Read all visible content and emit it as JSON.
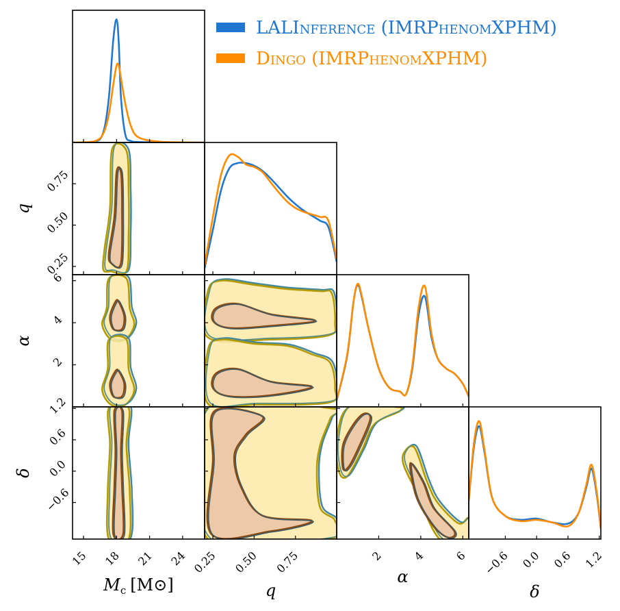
{
  "chart_data": {
    "type": "corner",
    "legend_position": "top-right",
    "grid": false,
    "series": [
      {
        "name": "LALInference (IMRPhenomXPHM)",
        "color": "#1f77d0",
        "sc_name": true
      },
      {
        "name": "Dingo (IMRPhenomXPHM)",
        "color": "#ff8c00",
        "sc_name": true
      }
    ],
    "parameters": [
      {
        "key": "Mc",
        "label_main": "M",
        "label_sub": "c",
        "label_unit": "[M⊙]",
        "range": [
          14,
          26
        ],
        "ticks": [
          "15",
          "18",
          "21",
          "24"
        ],
        "tick_values": [
          15,
          18,
          21,
          24
        ]
      },
      {
        "key": "q",
        "label_main": "q",
        "range": [
          0.2,
          1.0
        ],
        "ticks": [
          "0.25",
          "0.50",
          "0.75"
        ],
        "tick_values": [
          0.25,
          0.5,
          0.75
        ]
      },
      {
        "key": "alpha",
        "label_main": "α",
        "range": [
          0,
          6.283
        ],
        "ticks": [
          "2",
          "4",
          "6"
        ],
        "tick_values": [
          2,
          4,
          6
        ]
      },
      {
        "key": "delta",
        "label_main": "δ",
        "range": [
          -1.3,
          1.23
        ],
        "ticks": [
          "−0.6",
          "0.0",
          "0.6",
          "1.2"
        ],
        "tick_values": [
          -0.6,
          0.0,
          0.6,
          1.2
        ]
      }
    ],
    "marginals": {
      "Mc": {
        "x": [
          14,
          16,
          16.8,
          17.3,
          17.7,
          18.0,
          18.2,
          18.4,
          18.8,
          19.3,
          20,
          22,
          26
        ],
        "LALInference": [
          0,
          0.005,
          0.08,
          0.35,
          0.8,
          0.96,
          0.78,
          0.35,
          0.06,
          0.012,
          0.004,
          0.001,
          0
        ],
        "Dingo": [
          0,
          0.01,
          0.07,
          0.22,
          0.45,
          0.6,
          0.6,
          0.5,
          0.3,
          0.13,
          0.04,
          0.006,
          0
        ]
      },
      "q": {
        "x": [
          0.2,
          0.25,
          0.3,
          0.35,
          0.4,
          0.45,
          0.5,
          0.55,
          0.6,
          0.65,
          0.7,
          0.75,
          0.8,
          0.85,
          0.9,
          0.95,
          1.0
        ],
        "LALInference": [
          0.05,
          0.35,
          0.66,
          0.83,
          0.87,
          0.87,
          0.85,
          0.81,
          0.75,
          0.68,
          0.61,
          0.55,
          0.5,
          0.46,
          0.42,
          0.37,
          0.1
        ],
        "Dingo": [
          0.07,
          0.45,
          0.78,
          0.93,
          0.92,
          0.86,
          0.84,
          0.8,
          0.72,
          0.64,
          0.57,
          0.52,
          0.49,
          0.47,
          0.45,
          0.42,
          0.12
        ]
      },
      "alpha": {
        "x": [
          0,
          0.5,
          0.8,
          1.0,
          1.2,
          1.5,
          2.0,
          2.5,
          3.0,
          3.3,
          3.6,
          3.9,
          4.2,
          4.5,
          4.8,
          5.2,
          5.6,
          6.0,
          6.283
        ],
        "LALInference": [
          0.05,
          0.4,
          0.82,
          0.95,
          0.85,
          0.62,
          0.3,
          0.15,
          0.12,
          0.1,
          0.3,
          0.72,
          0.86,
          0.55,
          0.38,
          0.3,
          0.26,
          0.18,
          0.08
        ],
        "Dingo": [
          0.05,
          0.41,
          0.82,
          0.96,
          0.86,
          0.62,
          0.3,
          0.15,
          0.12,
          0.1,
          0.32,
          0.78,
          0.94,
          0.58,
          0.38,
          0.3,
          0.26,
          0.18,
          0.08
        ]
      },
      "delta": {
        "x": [
          -1.3,
          -1.2,
          -1.1,
          -1.0,
          -0.85,
          -0.6,
          -0.3,
          0.0,
          0.3,
          0.6,
          0.8,
          0.95,
          1.05,
          1.15,
          1.23
        ],
        "LALInference": [
          0.3,
          0.72,
          0.88,
          0.68,
          0.32,
          0.18,
          0.15,
          0.16,
          0.13,
          0.12,
          0.2,
          0.4,
          0.55,
          0.35,
          0.08
        ],
        "Dingo": [
          0.3,
          0.75,
          0.92,
          0.7,
          0.32,
          0.18,
          0.14,
          0.15,
          0.13,
          0.1,
          0.2,
          0.42,
          0.58,
          0.37,
          0.08
        ]
      }
    },
    "contours_2d": [
      {
        "x": "Mc",
        "y": "q",
        "outer": [
          [
            17.5,
            0.22
          ],
          [
            18.9,
            0.22
          ],
          [
            19.1,
            0.45
          ],
          [
            19.1,
            0.7
          ],
          [
            18.9,
            0.95
          ],
          [
            17.6,
            0.96
          ],
          [
            17.4,
            0.6
          ],
          [
            16.9,
            0.35
          ],
          [
            16.8,
            0.23
          ]
        ],
        "inner": [
          [
            17.5,
            0.27
          ],
          [
            18.4,
            0.27
          ],
          [
            18.5,
            0.6
          ],
          [
            18.4,
            0.82
          ],
          [
            18.0,
            0.82
          ],
          [
            17.8,
            0.55
          ],
          [
            17.3,
            0.33
          ]
        ]
      },
      {
        "x": "Mc",
        "y": "alpha",
        "blobs": [
          {
            "outer": [
              [
                17.5,
                3.2
              ],
              [
                18.8,
                3.2
              ],
              [
                19.6,
                3.9
              ],
              [
                19.2,
                4.7
              ],
              [
                18.9,
                6.1
              ],
              [
                17.3,
                6.1
              ],
              [
                17.1,
                4.7
              ],
              [
                16.7,
                3.9
              ]
            ],
            "inner": [
              [
                17.7,
                3.7
              ],
              [
                18.5,
                3.7
              ],
              [
                18.7,
                4.3
              ],
              [
                18.2,
                5.0
              ],
              [
                17.9,
                5.0
              ],
              [
                17.4,
                4.3
              ]
            ]
          },
          {
            "outer": [
              [
                17.5,
                0.1
              ],
              [
                18.8,
                0.1
              ],
              [
                19.6,
                0.8
              ],
              [
                19.1,
                1.8
              ],
              [
                18.9,
                3.2
              ],
              [
                17.3,
                3.2
              ],
              [
                17.2,
                1.8
              ],
              [
                16.7,
                0.8
              ]
            ],
            "inner": [
              [
                17.7,
                0.5
              ],
              [
                18.5,
                0.5
              ],
              [
                18.7,
                1.1
              ],
              [
                18.2,
                1.7
              ],
              [
                17.9,
                1.7
              ],
              [
                17.4,
                1.1
              ]
            ]
          }
        ]
      },
      {
        "x": "Mc",
        "y": "delta",
        "outer": [
          [
            17.3,
            -1.3
          ],
          [
            19.1,
            -1.3
          ],
          [
            19.2,
            -0.4
          ],
          [
            18.9,
            0.5
          ],
          [
            19.1,
            1.21
          ],
          [
            17.3,
            1.21
          ],
          [
            17.4,
            0.5
          ],
          [
            17.2,
            -0.4
          ]
        ],
        "inner": [
          [
            17.7,
            -1.2
          ],
          [
            18.6,
            -1.2
          ],
          [
            18.5,
            -0.3
          ],
          [
            18.4,
            0.4
          ],
          [
            18.5,
            1.15
          ],
          [
            17.8,
            1.15
          ],
          [
            17.9,
            0.4
          ],
          [
            17.8,
            -0.3
          ]
        ]
      },
      {
        "x": "q",
        "y": "alpha",
        "blobs": [
          {
            "outer": [
              [
                0.22,
                3.3
              ],
              [
                0.6,
                3.2
              ],
              [
                0.95,
                3.4
              ],
              [
                0.99,
                4.0
              ],
              [
                0.97,
                5.4
              ],
              [
                0.9,
                5.5
              ],
              [
                0.7,
                5.6
              ],
              [
                0.5,
                5.8
              ],
              [
                0.3,
                6.0
              ],
              [
                0.22,
                5.5
              ]
            ],
            "inner": [
              [
                0.25,
                4.1
              ],
              [
                0.35,
                3.75
              ],
              [
                0.6,
                3.85
              ],
              [
                0.87,
                4.1
              ],
              [
                0.6,
                4.4
              ],
              [
                0.4,
                4.9
              ],
              [
                0.27,
                4.7
              ]
            ]
          },
          {
            "outer": [
              [
                0.22,
                0.15
              ],
              [
                0.5,
                0.1
              ],
              [
                0.95,
                0.2
              ],
              [
                0.99,
                0.9
              ],
              [
                0.96,
                2.1
              ],
              [
                0.85,
                2.5
              ],
              [
                0.7,
                2.9
              ],
              [
                0.5,
                3.0
              ],
              [
                0.3,
                3.2
              ],
              [
                0.22,
                2.7
              ]
            ],
            "inner": [
              [
                0.25,
                0.9
              ],
              [
                0.35,
                0.5
              ],
              [
                0.6,
                0.55
              ],
              [
                0.85,
                0.95
              ],
              [
                0.6,
                1.2
              ],
              [
                0.4,
                1.8
              ],
              [
                0.27,
                1.6
              ]
            ]
          }
        ]
      },
      {
        "x": "q",
        "y": "delta",
        "outer": [
          [
            0.22,
            -1.3
          ],
          [
            0.95,
            -1.3
          ],
          [
            0.99,
            -0.95
          ],
          [
            0.9,
            -0.7
          ],
          [
            0.88,
            0.0
          ],
          [
            0.9,
            0.5
          ],
          [
            0.96,
            1.0
          ],
          [
            0.97,
            1.2
          ],
          [
            0.22,
            1.21
          ]
        ],
        "inner": [
          [
            0.24,
            -1.2
          ],
          [
            0.6,
            -1.15
          ],
          [
            0.85,
            -0.95
          ],
          [
            0.55,
            -0.85
          ],
          [
            0.42,
            -0.3
          ],
          [
            0.38,
            0.3
          ],
          [
            0.45,
            0.7
          ],
          [
            0.55,
            1.05
          ],
          [
            0.26,
            1.15
          ],
          [
            0.25,
            0.2
          ]
        ]
      },
      {
        "x": "alpha",
        "y": "delta",
        "blobs": [
          {
            "outer": [
              [
                0.1,
                0.0
              ],
              [
                0.5,
                -0.1
              ],
              [
                1.2,
                0.4
              ],
              [
                1.8,
                0.9
              ],
              [
                3.0,
                1.15
              ],
              [
                2.8,
                1.23
              ],
              [
                0.6,
                1.23
              ],
              [
                0.0,
                0.6
              ]
            ],
            "inner": [
              [
                0.3,
                0.05
              ],
              [
                0.6,
                0.1
              ],
              [
                1.1,
                0.5
              ],
              [
                1.6,
                1.0
              ],
              [
                1.3,
                1.1
              ],
              [
                0.8,
                0.9
              ],
              [
                0.3,
                0.5
              ]
            ]
          },
          {
            "outer": [
              [
                3.2,
                0.35
              ],
              [
                3.7,
                0.45
              ],
              [
                4.3,
                -0.2
              ],
              [
                4.8,
                -0.6
              ],
              [
                5.8,
                -1.0
              ],
              [
                6.28,
                -0.9
              ],
              [
                6.28,
                -1.3
              ],
              [
                4.9,
                -1.3
              ],
              [
                3.8,
                -0.4
              ],
              [
                3.2,
                0.1
              ]
            ],
            "inner": [
              [
                3.5,
                0.15
              ],
              [
                4.1,
                -0.2
              ],
              [
                4.6,
                -0.7
              ],
              [
                5.6,
                -1.15
              ],
              [
                5.3,
                -1.27
              ],
              [
                4.6,
                -1.05
              ],
              [
                3.8,
                -0.5
              ]
            ]
          }
        ]
      }
    ]
  }
}
